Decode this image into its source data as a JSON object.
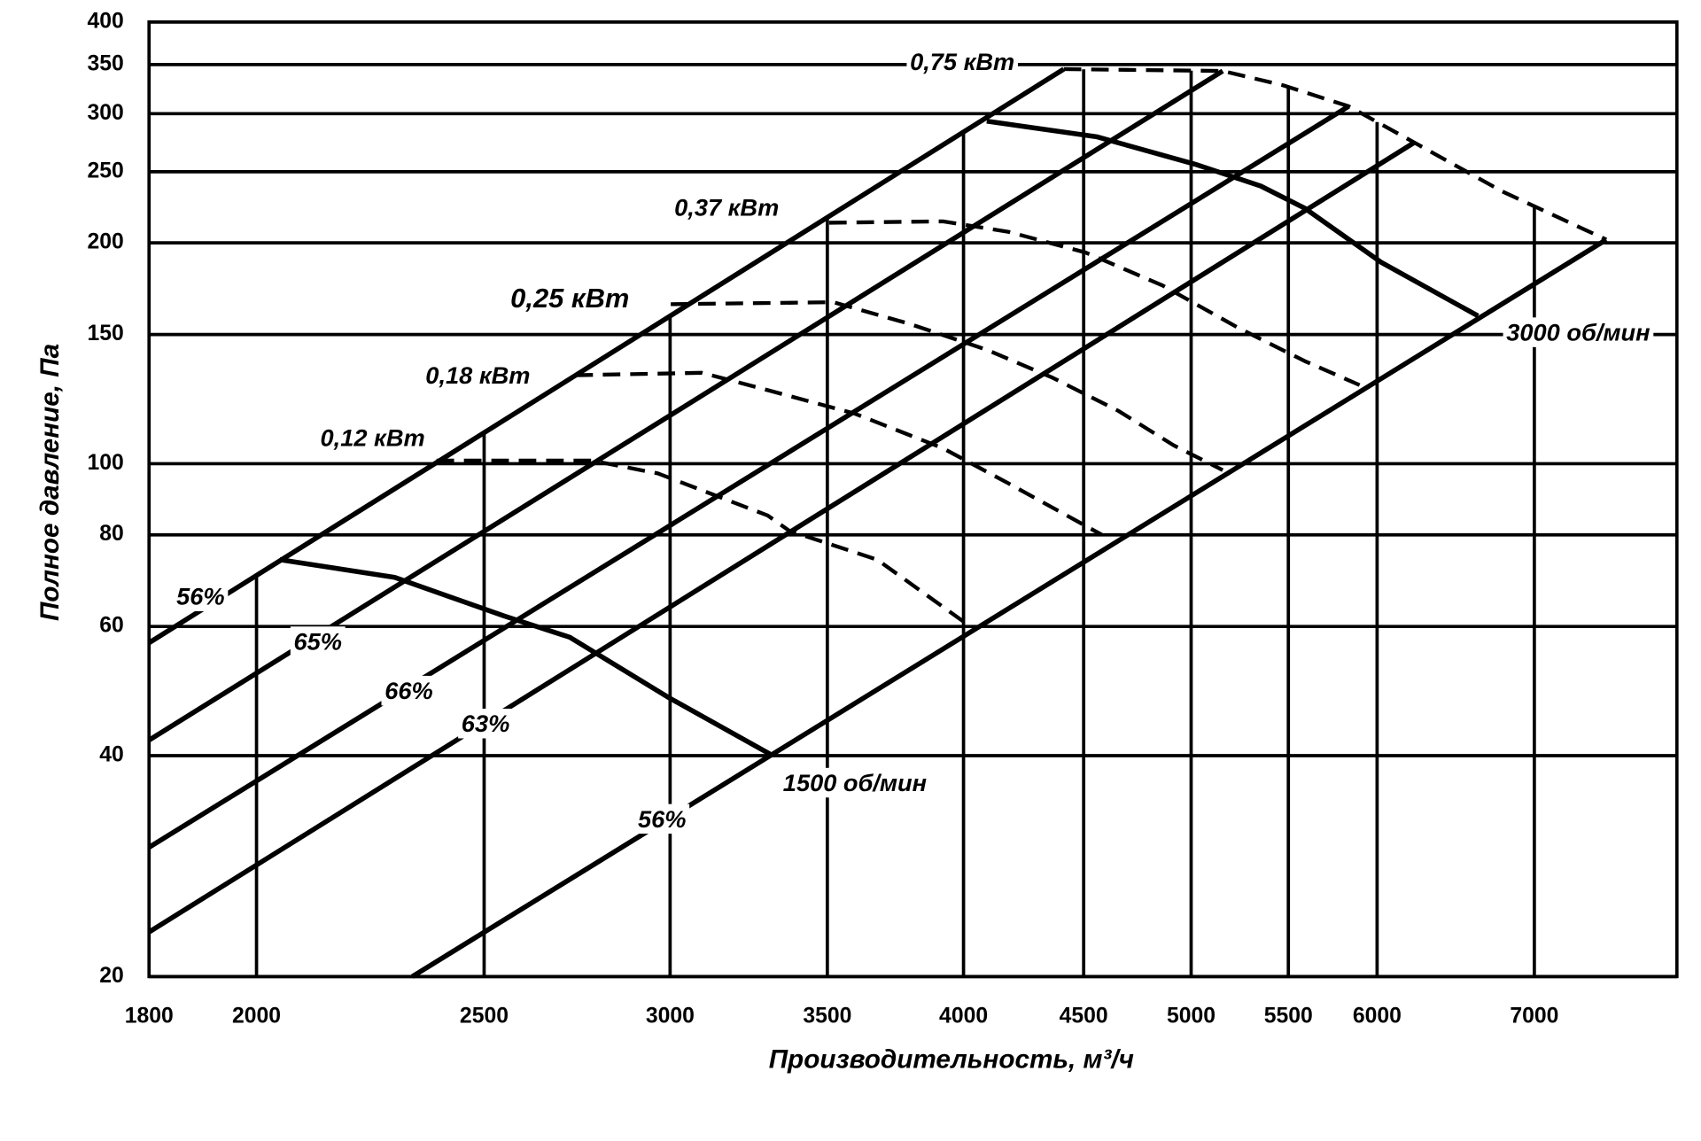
{
  "chart_data": {
    "type": "line",
    "x_label": "Производительность, м³/ч",
    "y_label": "Полное давление, Па",
    "log_x": true,
    "log_y": true,
    "grid": true,
    "xlim": [
      1800,
      8050
    ],
    "ylim": [
      20,
      400
    ],
    "xticks": [
      1800,
      2000,
      2500,
      3000,
      3500,
      4000,
      4500,
      5000,
      5500,
      6000,
      7000
    ],
    "yticks": [
      20,
      40,
      60,
      80,
      100,
      150,
      200,
      250,
      300,
      350,
      400
    ],
    "series": [
      {
        "name": "56%",
        "color": "#000000",
        "style": "solid",
        "x": [
          1800,
          4413
        ],
        "values": [
          57,
          345
        ]
      },
      {
        "name": "65%",
        "color": "#000000",
        "style": "solid",
        "x": [
          1800,
          5157
        ],
        "values": [
          42,
          343
        ]
      },
      {
        "name": "66%",
        "color": "#000000",
        "style": "solid",
        "x": [
          1800,
          5835
        ],
        "values": [
          30,
          307
        ]
      },
      {
        "name": "63%",
        "color": "#000000",
        "style": "solid",
        "x": [
          1800,
          6223
        ],
        "values": [
          23,
          274
        ]
      },
      {
        "name": "56%",
        "color": "#000000",
        "style": "solid",
        "x": [
          2330,
          7512
        ],
        "values": [
          20,
          202
        ]
      },
      {
        "name": "0,12 кВт",
        "color": "#000000",
        "style": "dashed",
        "x": [
          2386,
          2778,
          2964,
          3301,
          3372,
          3675,
          4027
        ],
        "values": [
          101,
          101,
          97,
          85,
          81,
          74,
          60
        ]
      },
      {
        "name": "0,18 кВт",
        "color": "#000000",
        "style": "dashed",
        "x": [
          2734,
          3095,
          3301,
          3596,
          3920,
          4181,
          4581
        ],
        "values": [
          132,
          133,
          126,
          117,
          105,
          94,
          80
        ]
      },
      {
        "name": "0,25 кВт",
        "color": "#000000",
        "style": "dashed",
        "x": [
          3002,
          3521,
          3796,
          4092,
          4365,
          4656,
          4913,
          5157
        ],
        "values": [
          165,
          166,
          155,
          143,
          131,
          118,
          106,
          98
        ]
      },
      {
        "name": "0,37 кВт",
        "color": "#000000",
        "style": "dashed",
        "x": [
          3506,
          3920,
          4181,
          4509,
          4862,
          5240,
          5589,
          5898
        ],
        "values": [
          213,
          214,
          207,
          194,
          175,
          153,
          138,
          128
        ]
      },
      {
        "name": "0,75 кВт",
        "color": "#000000",
        "style": "dashed",
        "x": [
          4413,
          5157,
          5470,
          5835,
          6223,
          6783,
          7512
        ],
        "values": [
          345,
          343,
          328,
          307,
          274,
          235,
          202
        ]
      },
      {
        "name": "1500 об/мин",
        "color": "#000000",
        "style": "solid",
        "x": [
          2046,
          2290,
          2550,
          2719,
          2996,
          3318
        ],
        "values": [
          74,
          70,
          62,
          58,
          48,
          40
        ]
      },
      {
        "name": "3000 об/мин",
        "color": "#000000",
        "style": "solid",
        "x": [
          4092,
          4557,
          5020,
          5353,
          5589,
          6026,
          6624
        ],
        "values": [
          293,
          279,
          256,
          239,
          223,
          188,
          159
        ]
      }
    ]
  }
}
